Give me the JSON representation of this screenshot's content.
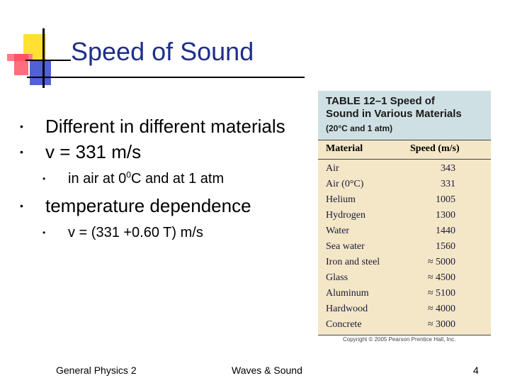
{
  "slide": {
    "title": "Speed of Sound",
    "bullets": [
      {
        "text": "Different in different materials"
      },
      {
        "text": "v = 331 m/s"
      },
      {
        "sub": "in air at 0",
        "sup": "0",
        "rest": "C and at 1 atm"
      },
      {
        "text": "temperature dependence"
      },
      {
        "sub2": "v = (331 +0.60 T) m/s"
      }
    ]
  },
  "table": {
    "title_line1": "TABLE 12–1  Speed of",
    "title_line2": "Sound in Various Materials",
    "subtitle": "(20°C and 1 atm)",
    "col_material": "Material",
    "col_speed": "Speed (m/s)",
    "rows": [
      {
        "material": "Air",
        "speed": "343"
      },
      {
        "material": "Air (0°C)",
        "speed": "331"
      },
      {
        "material": "Helium",
        "speed": "1005"
      },
      {
        "material": "Hydrogen",
        "speed": "1300"
      },
      {
        "material": "Water",
        "speed": "1440"
      },
      {
        "material": "Sea water",
        "speed": "1560"
      },
      {
        "material": "Iron and steel",
        "speed": "≈ 5000"
      },
      {
        "material": "Glass",
        "speed": "≈ 4500"
      },
      {
        "material": "Aluminum",
        "speed": "≈ 5100"
      },
      {
        "material": "Hardwood",
        "speed": "≈ 4000"
      },
      {
        "material": "Concrete",
        "speed": "≈ 3000"
      }
    ],
    "copyright": "Copyright © 2005 Pearson Prentice Hall, Inc."
  },
  "footer": {
    "left": "General Physics 2",
    "center": "Waves & Sound",
    "page": "4"
  },
  "colors": {
    "title": "#1f2f8a",
    "logo_yellow": "#ffe033",
    "logo_red": "#ff4a5a",
    "logo_blue": "#3344cc"
  }
}
